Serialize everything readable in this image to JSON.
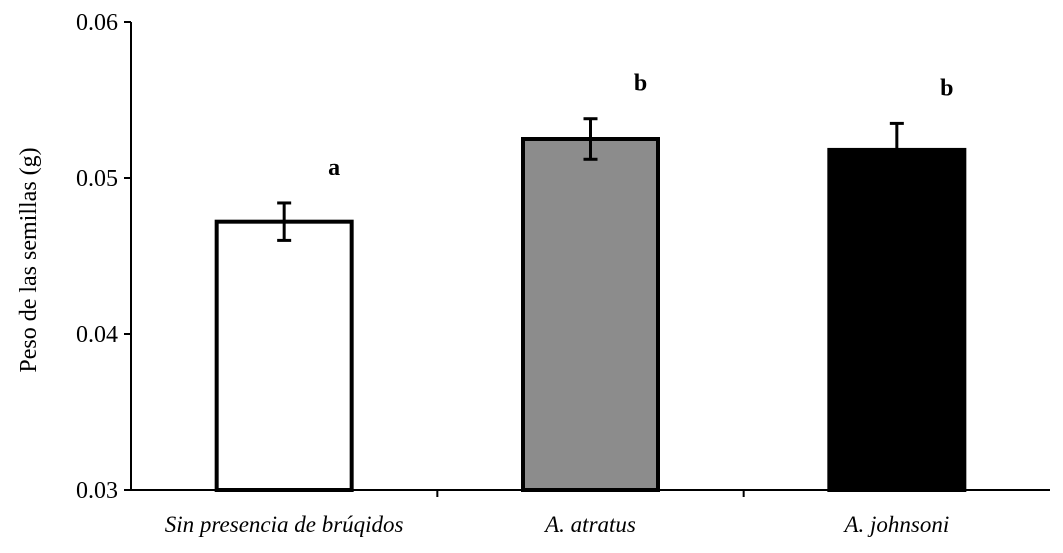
{
  "chart_data": {
    "type": "bar",
    "ylabel": "Peso de las semillas (g)",
    "xlabel": "",
    "ylim": [
      0.03,
      0.06
    ],
    "yticks": [
      "0.03",
      "0.04",
      "0.05",
      "0.06"
    ],
    "ytick_values": [
      0.03,
      0.04,
      0.05,
      0.06
    ],
    "grid": false,
    "legend": "none",
    "categories": [
      "Sin presencia de brúqidos",
      "A. atratus",
      "A. johnsoni"
    ],
    "values": [
      0.0472,
      0.0525,
      0.0518
    ],
    "error": [
      0.0012,
      0.0013,
      0.0017
    ],
    "significance": [
      "a",
      "b",
      "b"
    ],
    "colors": [
      "#ffffff",
      "#8c8c8c",
      "#000000"
    ],
    "edge_color": "#000000"
  }
}
